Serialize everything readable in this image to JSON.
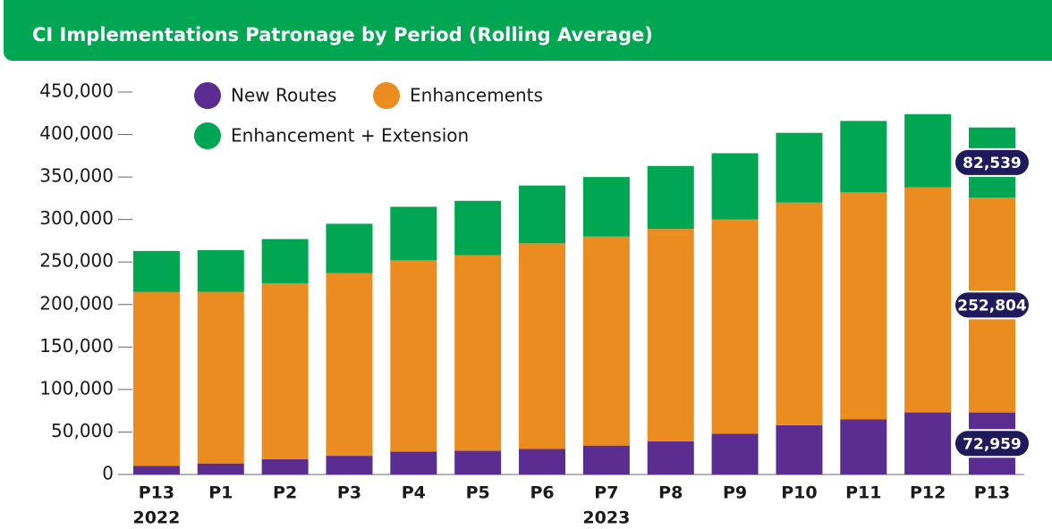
{
  "chart_data": {
    "type": "stacked-bar",
    "title": "CI Implementations Patronage by Period (Rolling Average)",
    "categories": [
      "P13",
      "P1",
      "P2",
      "P3",
      "P4",
      "P5",
      "P6",
      "P7",
      "P8",
      "P9",
      "P10",
      "P11",
      "P12",
      "P13"
    ],
    "year_labels": [
      "2022",
      null,
      null,
      null,
      null,
      null,
      null,
      "2023",
      null,
      null,
      null,
      null,
      null,
      null
    ],
    "series": [
      {
        "name": "New Routes",
        "color": "#5c2d91",
        "values": [
          10000,
          13000,
          18000,
          22000,
          27000,
          28000,
          30000,
          34000,
          39000,
          48000,
          58000,
          65000,
          73000,
          72959
        ],
        "value_labels": [
          null,
          null,
          null,
          null,
          null,
          null,
          null,
          null,
          null,
          null,
          null,
          null,
          null,
          "72,959"
        ]
      },
      {
        "name": "Enhancements",
        "color": "#ea8c1f",
        "values": [
          205000,
          202000,
          207000,
          215000,
          225000,
          230000,
          242000,
          246000,
          250000,
          252000,
          262000,
          267000,
          265000,
          252804
        ],
        "value_labels": [
          null,
          null,
          null,
          null,
          null,
          null,
          null,
          null,
          null,
          null,
          null,
          null,
          null,
          "252,804"
        ]
      },
      {
        "name": "Enhancement + Extension",
        "color": "#00a651",
        "values": [
          48000,
          49000,
          52000,
          58000,
          63000,
          64000,
          68000,
          70000,
          74000,
          78000,
          82000,
          84000,
          86000,
          82539
        ],
        "value_labels": [
          null,
          null,
          null,
          null,
          null,
          null,
          null,
          null,
          null,
          null,
          null,
          null,
          null,
          "82,539"
        ]
      }
    ],
    "ylim": [
      0,
      450000
    ],
    "yticks": [
      0,
      {
        "value": 50000,
        "label": "50,000"
      },
      {
        "value": 100000,
        "label": "100,000"
      },
      {
        "value": 150000,
        "label": "150,000"
      },
      {
        "value": 200000,
        "label": "200,000"
      },
      {
        "value": 250000,
        "label": "250,000"
      },
      {
        "value": 300000,
        "label": "300,000"
      },
      {
        "value": 350000,
        "label": "350,000"
      },
      {
        "value": 400000,
        "label": "400,000"
      },
      {
        "value": 450000,
        "label": "450,000"
      }
    ],
    "legend": "top-left",
    "grid": false
  }
}
